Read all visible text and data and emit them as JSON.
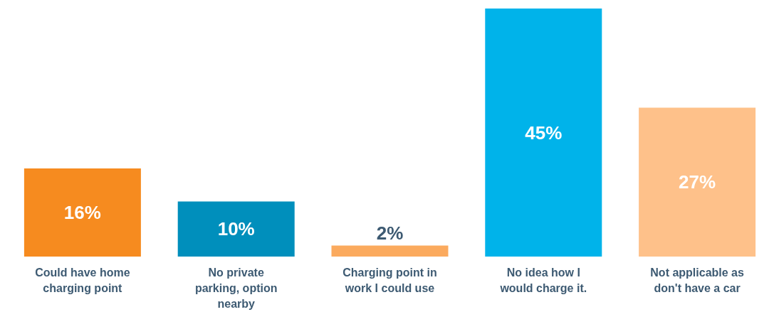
{
  "chart_data": {
    "type": "bar",
    "categories": [
      "Could have home charging point",
      "No private parking, option nearby",
      "Charging point in work I could use",
      "No idea how I would charge it.",
      "Not applicable as don't have a car"
    ],
    "values": [
      16,
      10,
      2,
      45,
      27
    ],
    "colors": [
      "#f68b1f",
      "#008fbc",
      "#fbaa5e",
      "#00b3ea",
      "#fec18a"
    ],
    "value_labels": [
      "16%",
      "10%",
      "2%",
      "45%",
      "27%"
    ],
    "grid": false,
    "legend": false
  }
}
